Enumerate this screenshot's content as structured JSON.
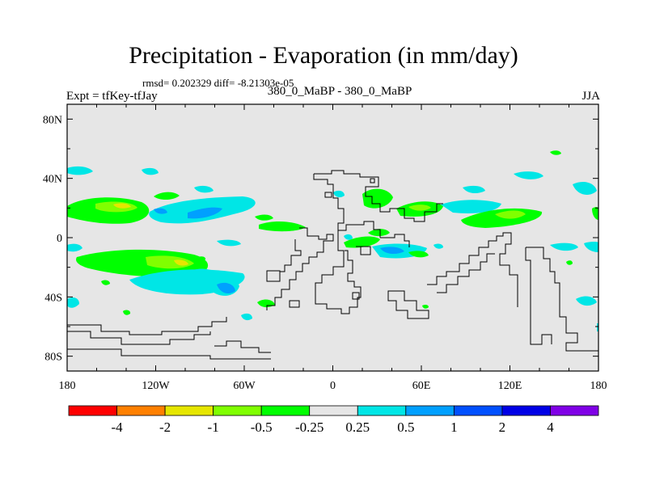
{
  "header": {
    "title": "Precipitation - Evaporation (in mm/day)",
    "stats": "rmsd= 0.202329 diff= -8.21303e-05",
    "left_label": "Expt = tfKey-tfJay",
    "center_label": "380_0_MaBP - 380_0_MaBP",
    "right_label": "JJA"
  },
  "map": {
    "x_ticks": [
      "180",
      "120W",
      "60W",
      "0",
      "60E",
      "120E",
      "180"
    ],
    "y_ticks": [
      "80N",
      "40N",
      "0",
      "40S",
      "80S"
    ],
    "background_color": "#e6e6e6"
  },
  "colorbar": {
    "colors": [
      "#ff0000",
      "#ff8000",
      "#e6e600",
      "#80ff00",
      "#00ff00",
      "#e6e6e6",
      "#00e6e6",
      "#00a0ff",
      "#0050ff",
      "#0000e6",
      "#8000e6"
    ],
    "labels": [
      "-4",
      "-2",
      "-1",
      "-0.5",
      "-0.25",
      "0.25",
      "0.5",
      "1",
      "2",
      "4"
    ]
  }
}
